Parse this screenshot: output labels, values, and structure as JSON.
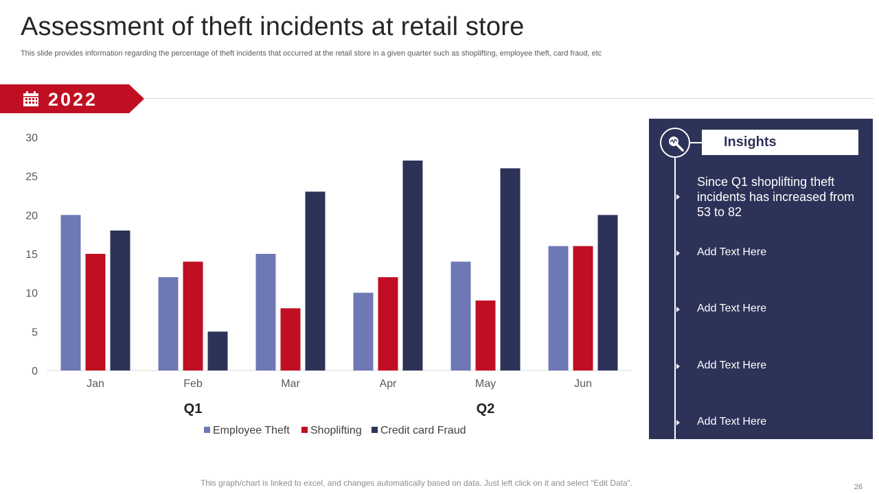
{
  "header": {
    "title": "Assessment of theft incidents at retail store",
    "subtitle": "This slide provides information regarding the percentage of theft incidents that occurred at the retail store in a given quarter such as shoplifting, employee theft, card fraud, etc"
  },
  "banner": {
    "year": "2022",
    "icon": "calendar-icon",
    "color": "#c00f22"
  },
  "chart_data": {
    "type": "bar",
    "categories": [
      "Jan",
      "Feb",
      "Mar",
      "Apr",
      "May",
      "Jun"
    ],
    "groups": [
      "Q1",
      "Q2"
    ],
    "series": [
      {
        "name": "Employee Theft",
        "color": "#6e78b5",
        "values": [
          20,
          12,
          15,
          10,
          14,
          16
        ]
      },
      {
        "name": "Shoplifting",
        "color": "#c00f22",
        "values": [
          15,
          14,
          8,
          12,
          9,
          16
        ]
      },
      {
        "name": "Credit card Fraud",
        "color": "#2d3358",
        "values": [
          18,
          5,
          23,
          27,
          26,
          20
        ]
      }
    ],
    "yticks": [
      "0",
      "5",
      "10",
      "15",
      "20",
      "25",
      "30"
    ],
    "ylim": [
      0,
      30
    ],
    "grid": false,
    "legend": "bottom"
  },
  "insights": {
    "heading": "Insights",
    "icon": "search-magnifier-icon",
    "items": [
      "Since Q1 shoplifting theft incidents has increased from 53 to 82",
      "Add Text Here",
      "Add Text Here",
      "Add Text Here",
      "Add Text Here"
    ],
    "panel_color": "#2d3358"
  },
  "footer": {
    "note": "This graph/chart is linked to excel, and changes automatically based on data. Just left click on it and select “Edit Data”.",
    "page_number": "26"
  }
}
